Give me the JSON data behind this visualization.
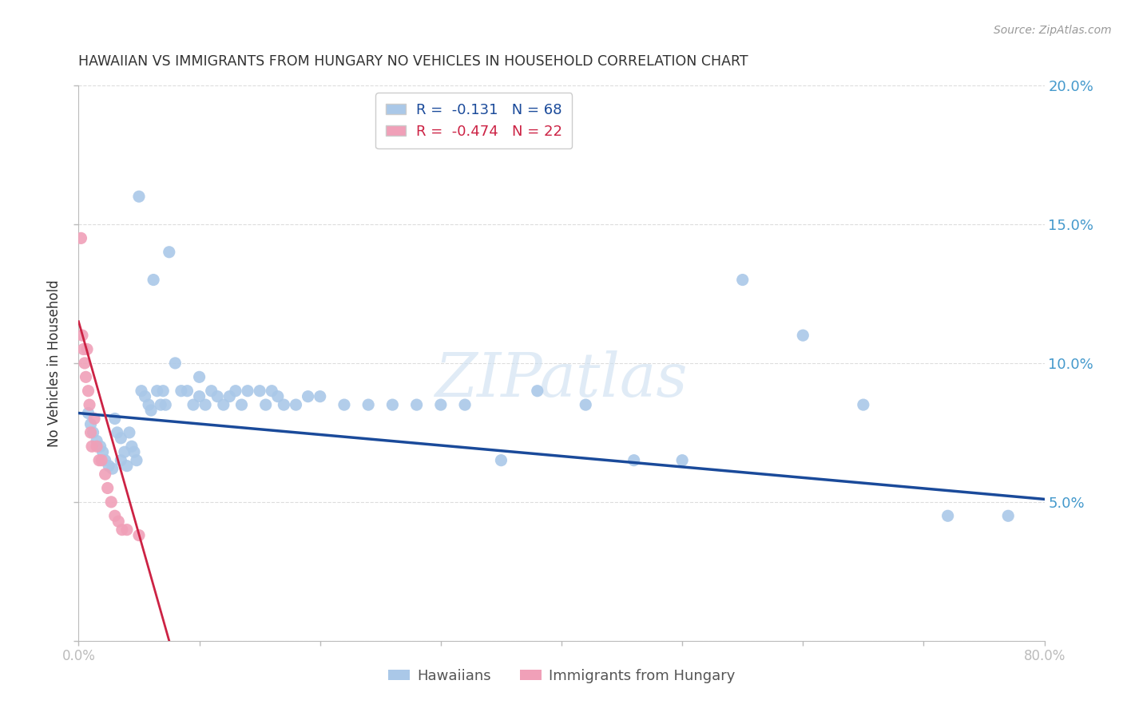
{
  "title": "HAWAIIAN VS IMMIGRANTS FROM HUNGARY NO VEHICLES IN HOUSEHOLD CORRELATION CHART",
  "source": "Source: ZipAtlas.com",
  "ylabel": "No Vehicles in Household",
  "watermark": "ZIPatlas",
  "legend": {
    "hawaiians_label": "Hawaiians",
    "hungary_label": "Immigrants from Hungary",
    "hawaiians_R": -0.131,
    "hawaiians_N": 68,
    "hungary_R": -0.474,
    "hungary_N": 22
  },
  "xmin": 0.0,
  "xmax": 0.8,
  "ymin": 0.0,
  "ymax": 0.2,
  "blue_color": "#aac8e8",
  "blue_line_color": "#1a4a9a",
  "pink_color": "#f0a0b8",
  "pink_line_color": "#cc2244",
  "axis_color": "#bbbbbb",
  "grid_color": "#dddddd",
  "right_ytick_color": "#4499cc",
  "hawaiians_x": [
    0.008,
    0.01,
    0.012,
    0.015,
    0.018,
    0.02,
    0.022,
    0.025,
    0.028,
    0.03,
    0.032,
    0.035,
    0.035,
    0.038,
    0.04,
    0.042,
    0.044,
    0.046,
    0.048,
    0.05,
    0.052,
    0.055,
    0.058,
    0.06,
    0.062,
    0.065,
    0.068,
    0.07,
    0.072,
    0.075,
    0.08,
    0.085,
    0.09,
    0.095,
    0.1,
    0.1,
    0.105,
    0.11,
    0.115,
    0.12,
    0.125,
    0.13,
    0.135,
    0.14,
    0.15,
    0.155,
    0.16,
    0.165,
    0.17,
    0.18,
    0.19,
    0.2,
    0.22,
    0.24,
    0.26,
    0.28,
    0.3,
    0.32,
    0.35,
    0.38,
    0.42,
    0.46,
    0.5,
    0.55,
    0.6,
    0.65,
    0.72,
    0.77
  ],
  "hawaiians_y": [
    0.082,
    0.078,
    0.075,
    0.072,
    0.07,
    0.068,
    0.065,
    0.063,
    0.062,
    0.08,
    0.075,
    0.073,
    0.065,
    0.068,
    0.063,
    0.075,
    0.07,
    0.068,
    0.065,
    0.16,
    0.09,
    0.088,
    0.085,
    0.083,
    0.13,
    0.09,
    0.085,
    0.09,
    0.085,
    0.14,
    0.1,
    0.09,
    0.09,
    0.085,
    0.088,
    0.095,
    0.085,
    0.09,
    0.088,
    0.085,
    0.088,
    0.09,
    0.085,
    0.09,
    0.09,
    0.085,
    0.09,
    0.088,
    0.085,
    0.085,
    0.088,
    0.088,
    0.085,
    0.085,
    0.085,
    0.085,
    0.085,
    0.085,
    0.065,
    0.09,
    0.085,
    0.065,
    0.065,
    0.13,
    0.11,
    0.085,
    0.045,
    0.045
  ],
  "hungary_x": [
    0.002,
    0.003,
    0.004,
    0.005,
    0.006,
    0.007,
    0.008,
    0.009,
    0.01,
    0.011,
    0.013,
    0.015,
    0.017,
    0.019,
    0.022,
    0.024,
    0.027,
    0.03,
    0.033,
    0.036,
    0.04,
    0.05
  ],
  "hungary_y": [
    0.145,
    0.11,
    0.105,
    0.1,
    0.095,
    0.105,
    0.09,
    0.085,
    0.075,
    0.07,
    0.08,
    0.07,
    0.065,
    0.065,
    0.06,
    0.055,
    0.05,
    0.045,
    0.043,
    0.04,
    0.04,
    0.038
  ],
  "blue_trend_x0": 0.0,
  "blue_trend_y0": 0.082,
  "blue_trend_x1": 0.8,
  "blue_trend_y1": 0.051,
  "pink_trend_x0": 0.0,
  "pink_trend_y0": 0.115,
  "pink_trend_x1": 0.075,
  "pink_trend_y1": 0.0
}
